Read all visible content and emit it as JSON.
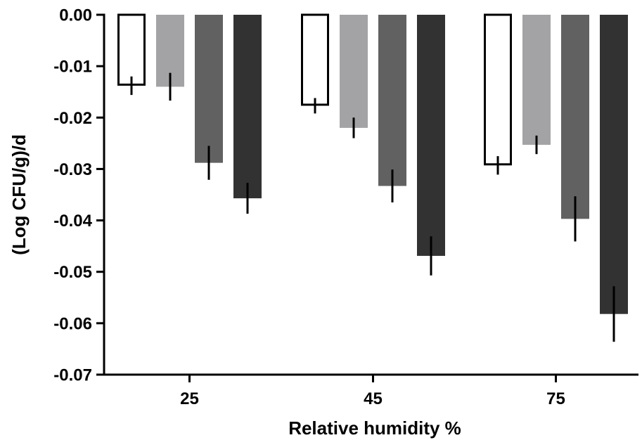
{
  "chart_data": {
    "type": "bar",
    "title": "",
    "xlabel": "Relative humidity %",
    "ylabel": "(Log CFU/g)/d",
    "categories": [
      "25",
      "45",
      "75"
    ],
    "ylim": [
      -0.07,
      0.0
    ],
    "yticks": [
      "0.00",
      "-0.01",
      "-0.02",
      "-0.03",
      "-0.04",
      "-0.05",
      "-0.06",
      "-0.07"
    ],
    "ytick_values": [
      0.0,
      -0.01,
      -0.02,
      -0.03,
      -0.04,
      -0.05,
      -0.06,
      -0.07
    ],
    "grid": false,
    "legend": "none",
    "series": [
      {
        "fill": "#ffffff",
        "stroke": "#000000",
        "values": [
          -0.0138,
          -0.0177,
          -0.0293
        ],
        "errors": [
          0.0018,
          0.0015,
          0.0018
        ]
      },
      {
        "fill": "#a3a3a5",
        "stroke": "#a3a3a5",
        "values": [
          -0.014,
          -0.022,
          -0.0253
        ],
        "errors": [
          0.0027,
          0.002,
          0.0018
        ]
      },
      {
        "fill": "#616161",
        "stroke": "#616161",
        "values": [
          -0.0288,
          -0.0333,
          -0.0397
        ],
        "errors": [
          0.0033,
          0.0032,
          0.0044
        ]
      },
      {
        "fill": "#323232",
        "stroke": "#323232",
        "values": [
          -0.0357,
          -0.0469,
          -0.0582
        ],
        "errors": [
          0.003,
          0.0038,
          0.0054
        ]
      }
    ]
  }
}
